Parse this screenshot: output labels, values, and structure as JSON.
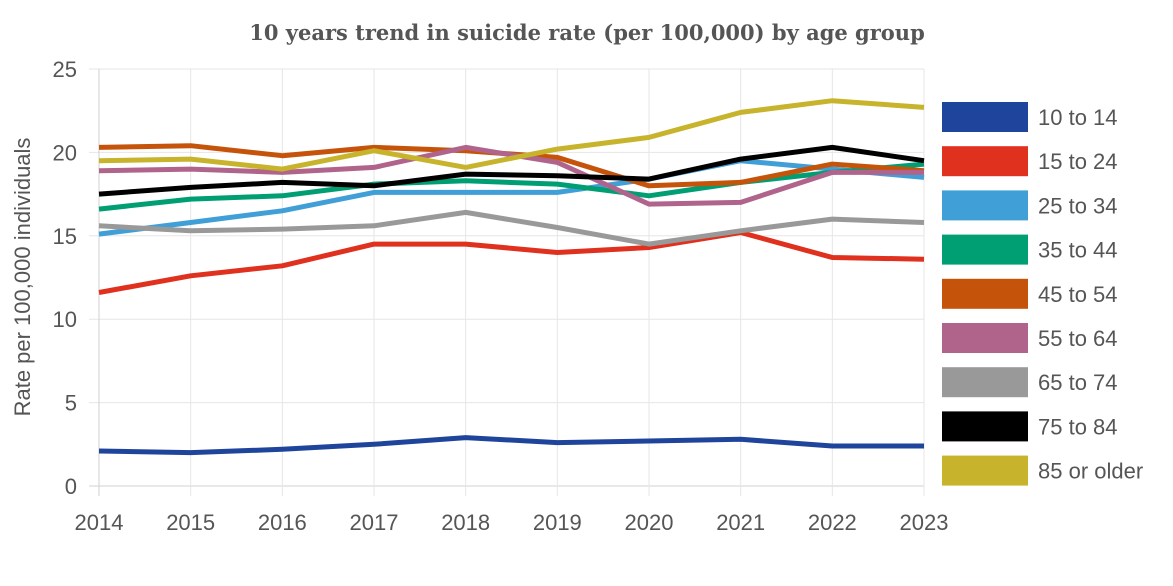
{
  "chart_data": {
    "type": "line",
    "title": "10 years trend in suicide rate (per 100,000) by age group",
    "xlabel": "",
    "ylabel": "Rate per 100,000 individuals",
    "x": [
      "2014",
      "2015",
      "2016",
      "2017",
      "2018",
      "2019",
      "2020",
      "2021",
      "2022",
      "2023"
    ],
    "ylim": [
      0,
      25
    ],
    "yticks": [
      "0",
      "5",
      "10",
      "15",
      "20",
      "25"
    ],
    "grid": true,
    "legend_position": "right",
    "series": [
      {
        "name": "10 to 14",
        "color": "#1f449c",
        "values": [
          2.1,
          2.0,
          2.2,
          2.5,
          2.9,
          2.6,
          2.7,
          2.8,
          2.4,
          2.4
        ]
      },
      {
        "name": "15 to 24",
        "color": "#e0301e",
        "values": [
          11.6,
          12.6,
          13.2,
          14.5,
          14.5,
          14.0,
          14.3,
          15.2,
          13.7,
          13.6
        ]
      },
      {
        "name": "25 to 34",
        "color": "#3f9fd6",
        "values": [
          15.1,
          15.8,
          16.5,
          17.6,
          17.6,
          17.6,
          18.4,
          19.5,
          19.0,
          18.5
        ]
      },
      {
        "name": "35 to 44",
        "color": "#009e73",
        "values": [
          16.6,
          17.2,
          17.4,
          18.1,
          18.3,
          18.1,
          17.4,
          18.2,
          18.8,
          19.3
        ]
      },
      {
        "name": "45 to 54",
        "color": "#c5540a",
        "values": [
          20.3,
          20.4,
          19.8,
          20.3,
          20.1,
          19.7,
          18.0,
          18.2,
          19.3,
          18.9
        ]
      },
      {
        "name": "55 to 64",
        "color": "#b0648c",
        "values": [
          18.9,
          19.0,
          18.8,
          19.1,
          20.3,
          19.4,
          16.9,
          17.0,
          18.8,
          18.8
        ]
      },
      {
        "name": "65 to 74",
        "color": "#999999",
        "values": [
          15.6,
          15.3,
          15.4,
          15.6,
          16.4,
          15.5,
          14.5,
          15.3,
          16.0,
          15.8
        ]
      },
      {
        "name": "75 to 84",
        "color": "#000000",
        "values": [
          17.5,
          17.9,
          18.2,
          18.0,
          18.7,
          18.6,
          18.4,
          19.6,
          20.3,
          19.5
        ]
      },
      {
        "name": "85 or older",
        "color": "#c7b42c",
        "values": [
          19.5,
          19.6,
          19.0,
          20.1,
          19.1,
          20.2,
          20.9,
          22.4,
          23.1,
          22.7
        ]
      }
    ]
  }
}
